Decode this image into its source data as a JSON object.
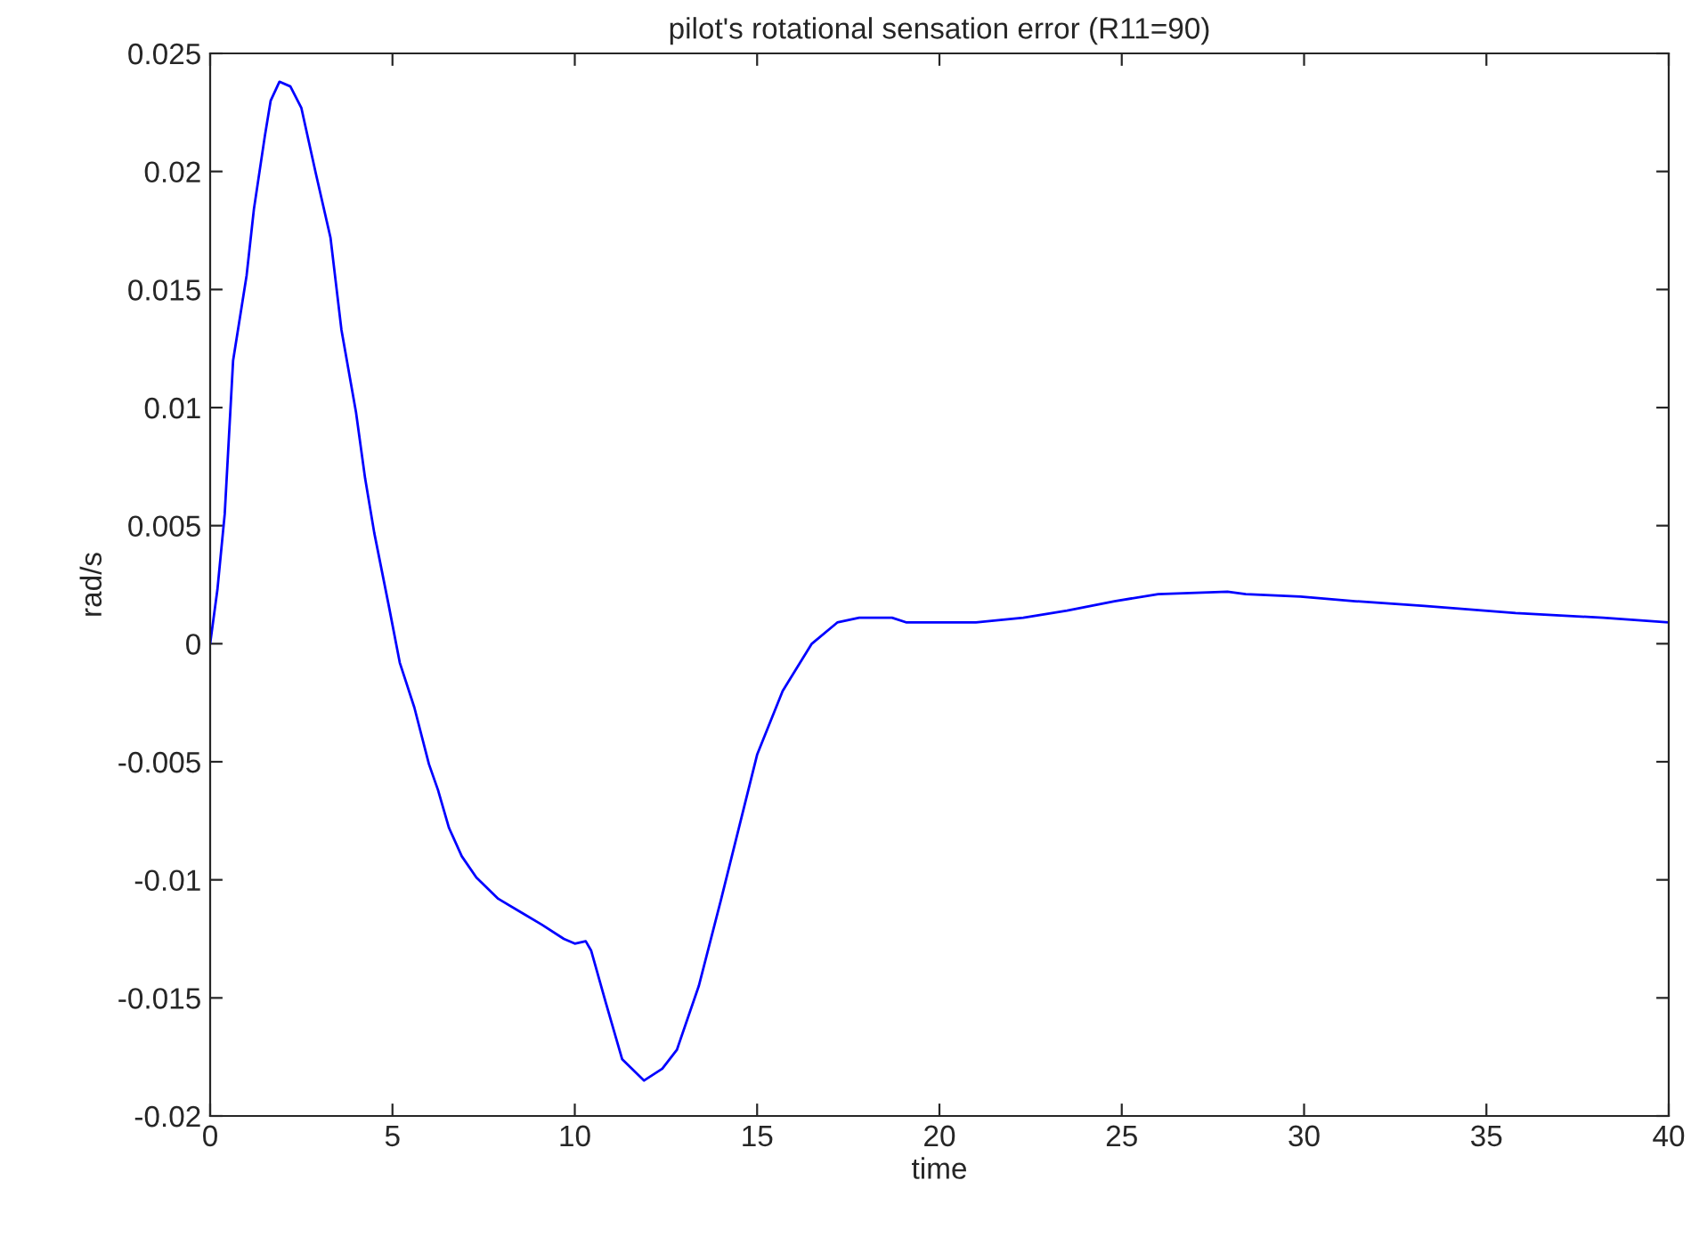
{
  "chart_data": {
    "type": "line",
    "title": "pilot's rotational sensation error (R11=90)",
    "xlabel": "time",
    "ylabel": "rad/s",
    "xlim": [
      0,
      40
    ],
    "xticks": [
      0,
      5,
      10,
      15,
      20,
      25,
      30,
      35,
      40
    ],
    "ylim": [
      -0.02,
      0.025
    ],
    "yticks": [
      -0.02,
      -0.015,
      -0.01,
      -0.005,
      0,
      0.005,
      0.01,
      0.015,
      0.02,
      0.025
    ],
    "grid": false,
    "legend": false,
    "marker": "none",
    "line_style": "solid",
    "x": [
      0,
      0.2,
      0.4,
      0.63,
      1.0,
      1.2,
      1.5,
      1.66,
      1.9,
      2.2,
      2.5,
      2.9,
      3.3,
      3.6,
      4.0,
      4.25,
      4.5,
      4.9,
      5.2,
      5.6,
      6.0,
      6.25,
      6.55,
      6.9,
      7.3,
      7.9,
      8.55,
      9.1,
      9.7,
      10.0,
      10.3,
      10.45,
      10.85,
      11.3,
      11.9,
      12.4,
      12.8,
      13.4,
      14.0,
      14.5,
      15.0,
      15.7,
      16.5,
      17.2,
      17.8,
      18.7,
      19.1,
      21.0,
      22.3,
      23.5,
      24.8,
      26.0,
      27.9,
      28.4,
      29.9,
      31.4,
      33.3,
      35.8,
      38.2,
      40
    ],
    "series": [
      {
        "color": "#0000ff",
        "values": [
          0,
          0.0023,
          0.0055,
          0.012,
          0.0156,
          0.0184,
          0.0215,
          0.023,
          0.0238,
          0.0236,
          0.0227,
          0.0199,
          0.0172,
          0.0133,
          0.0098,
          0.007,
          0.0047,
          0.0016,
          -0.0008,
          -0.0027,
          -0.0051,
          -0.0062,
          -0.0078,
          -0.009,
          -0.0099,
          -0.0108,
          -0.0114,
          -0.0119,
          -0.0125,
          -0.0127,
          -0.0126,
          -0.013,
          -0.0152,
          -0.0176,
          -0.0185,
          -0.018,
          -0.0172,
          -0.0145,
          -0.0109,
          -0.0078,
          -0.0047,
          -0.002,
          0,
          0.0009,
          0.0011,
          0.0011,
          0.0009,
          0.0009,
          0.0011,
          0.0014,
          0.0018,
          0.0021,
          0.0022,
          0.0021,
          0.002,
          0.0018,
          0.0016,
          0.0013,
          0.0011,
          0.0009
        ]
      }
    ]
  }
}
